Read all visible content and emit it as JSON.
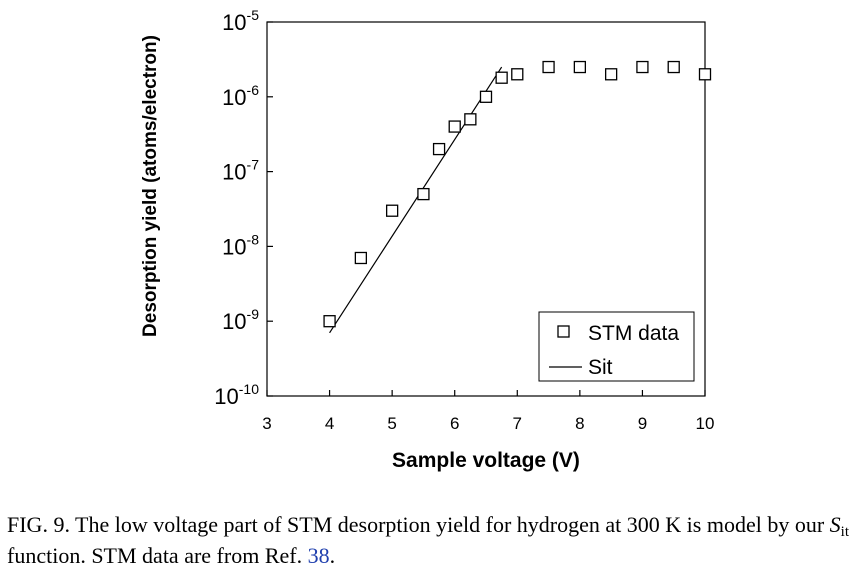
{
  "chart_data": {
    "type": "scatter",
    "xlabel": "Sample voltage (V)",
    "ylabel": "Desorption yield (atoms/electron)",
    "xlim": [
      3,
      10
    ],
    "ylim": [
      1e-10,
      1e-05
    ],
    "yscale": "log",
    "xticks": [
      "3",
      "4",
      "5",
      "6",
      "7",
      "8",
      "9",
      "10"
    ],
    "yticks": [
      {
        "base": "10",
        "exp": "-10",
        "value": 1e-10
      },
      {
        "base": "10",
        "exp": "-9",
        "value": 1e-09
      },
      {
        "base": "10",
        "exp": "-8",
        "value": 1e-08
      },
      {
        "base": "10",
        "exp": "-7",
        "value": 1e-07
      },
      {
        "base": "10",
        "exp": "-6",
        "value": 1e-06
      },
      {
        "base": "10",
        "exp": "-5",
        "value": 1e-05
      }
    ],
    "grid": false,
    "legend_position": "bottom-right",
    "series": [
      {
        "name": "STM data",
        "marker": "open-square",
        "x": [
          4.0,
          4.5,
          5.0,
          5.5,
          5.75,
          6.0,
          6.25,
          6.5,
          6.75,
          7.0,
          7.5,
          8.0,
          8.5,
          9.0,
          9.5,
          10.0
        ],
        "y": [
          1e-09,
          7e-09,
          3e-08,
          5e-08,
          2e-07,
          4e-07,
          5e-07,
          1e-06,
          1.8e-06,
          2e-06,
          2.5e-06,
          2.5e-06,
          2e-06,
          2.5e-06,
          2.5e-06,
          2e-06
        ]
      },
      {
        "name": "Sit",
        "marker": "line",
        "x": [
          4.0,
          6.75
        ],
        "y": [
          7e-10,
          2.5e-06
        ]
      }
    ]
  },
  "caption": {
    "text_before": "FIG. 9. The low voltage part of STM desorption yield for hydrogen at 300 K is model by our ",
    "symbol_main": "S",
    "symbol_sub": "it",
    "text_middle": " function. STM data are from Ref. ",
    "ref": "38",
    "text_end": "."
  }
}
